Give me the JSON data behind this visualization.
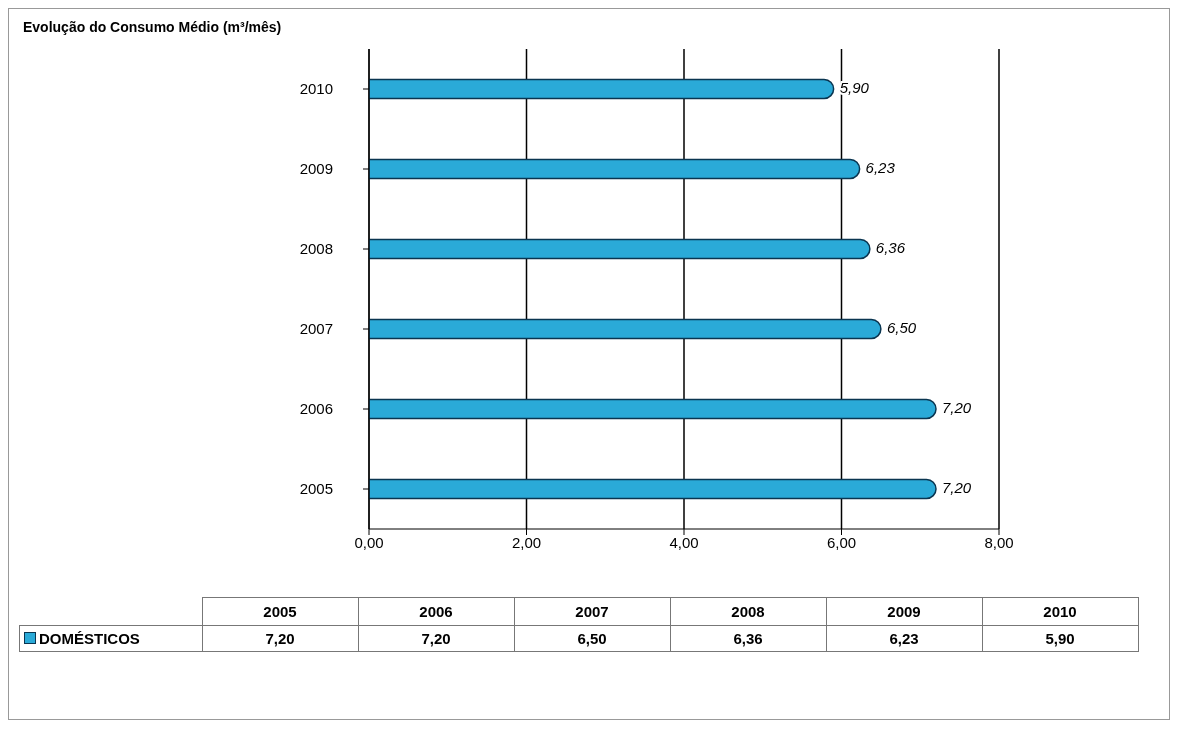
{
  "chart_data": {
    "type": "bar",
    "orientation": "horizontal",
    "title": "Evolução do Consumo Médio (m³/mês)",
    "categories": [
      "2010",
      "2009",
      "2008",
      "2007",
      "2006",
      "2005"
    ],
    "series": [
      {
        "name": "DOMÉSTICOS",
        "color": "#2aaad8",
        "values": [
          5.9,
          6.23,
          6.36,
          6.5,
          7.2,
          7.2
        ],
        "value_labels": [
          "5,90",
          "6,23",
          "6,36",
          "6,50",
          "7,20",
          "7,20"
        ]
      }
    ],
    "xlim": [
      0,
      8
    ],
    "xticks": [
      {
        "value": 0,
        "label": "0,00"
      },
      {
        "value": 2,
        "label": "2,00"
      },
      {
        "value": 4,
        "label": "4,00"
      },
      {
        "value": 6,
        "label": "6,00"
      },
      {
        "value": 8,
        "label": "8,00"
      }
    ],
    "grid": "x"
  }
}
